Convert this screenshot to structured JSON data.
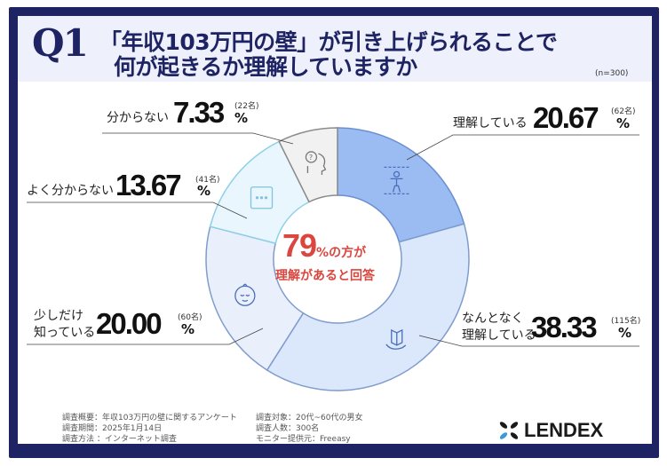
{
  "header": {
    "q_label": "Q1",
    "title_line1": "「年収103万円の壁」が引き上げられることで",
    "title_line2": "何が起きるか理解していますか",
    "sample": "(n=300)"
  },
  "center": {
    "value": "79",
    "unit": "%の方が",
    "line2": "理解があると回答"
  },
  "chart_data": {
    "type": "pie",
    "donut": true,
    "start": "12 o'clock, clockwise",
    "slices": [
      {
        "label": "理解している",
        "label_line1": "理解している",
        "label_line2": "",
        "value": 20.67,
        "value_text": "20.67",
        "count": "(62名)",
        "color": "#9bbcf2",
        "icon": "person-icon"
      },
      {
        "label": "なんとなく理解している",
        "label_line1": "なんとなく",
        "label_line2": "理解している",
        "value": 38.33,
        "value_text": "38.33",
        "count": "(115名)",
        "color": "#dbe7fb",
        "icon": "book-hand-icon"
      },
      {
        "label": "少しだけ知っている",
        "label_line1": "少しだけ",
        "label_line2": "知っている",
        "value": 20.0,
        "value_text": "20.00",
        "count": "(60名)",
        "color": "#e9f0fc",
        "icon": "baby-face-icon"
      },
      {
        "label": "よく分からない",
        "label_line1": "よく分からない",
        "label_line2": "",
        "value": 13.67,
        "value_text": "13.67",
        "count": "(41名)",
        "color": "#eaf6fd",
        "icon": "ellipsis-box-icon"
      },
      {
        "label": "分からない",
        "label_line1": "分からない",
        "label_line2": "",
        "value": 7.33,
        "value_text": "7.33",
        "count": "(22名)",
        "color": "#f1f1f1",
        "icon": "question-head-icon"
      }
    ],
    "percent_sign": "%"
  },
  "footer": {
    "left": [
      "調査概要：年収103万円の壁に関するアンケート",
      "調査期間：2025年1月14日",
      "調査方法 ：インターネット調査"
    ],
    "right": [
      "調査対象：20代~60代の男女",
      "調査人数：300名",
      "モニター提供元：Freeasy"
    ],
    "logo": "LENDEX"
  },
  "colors": {
    "navy": "#1e2463",
    "accent_red": "#d9473f",
    "header_bg": "#eef1fb"
  }
}
